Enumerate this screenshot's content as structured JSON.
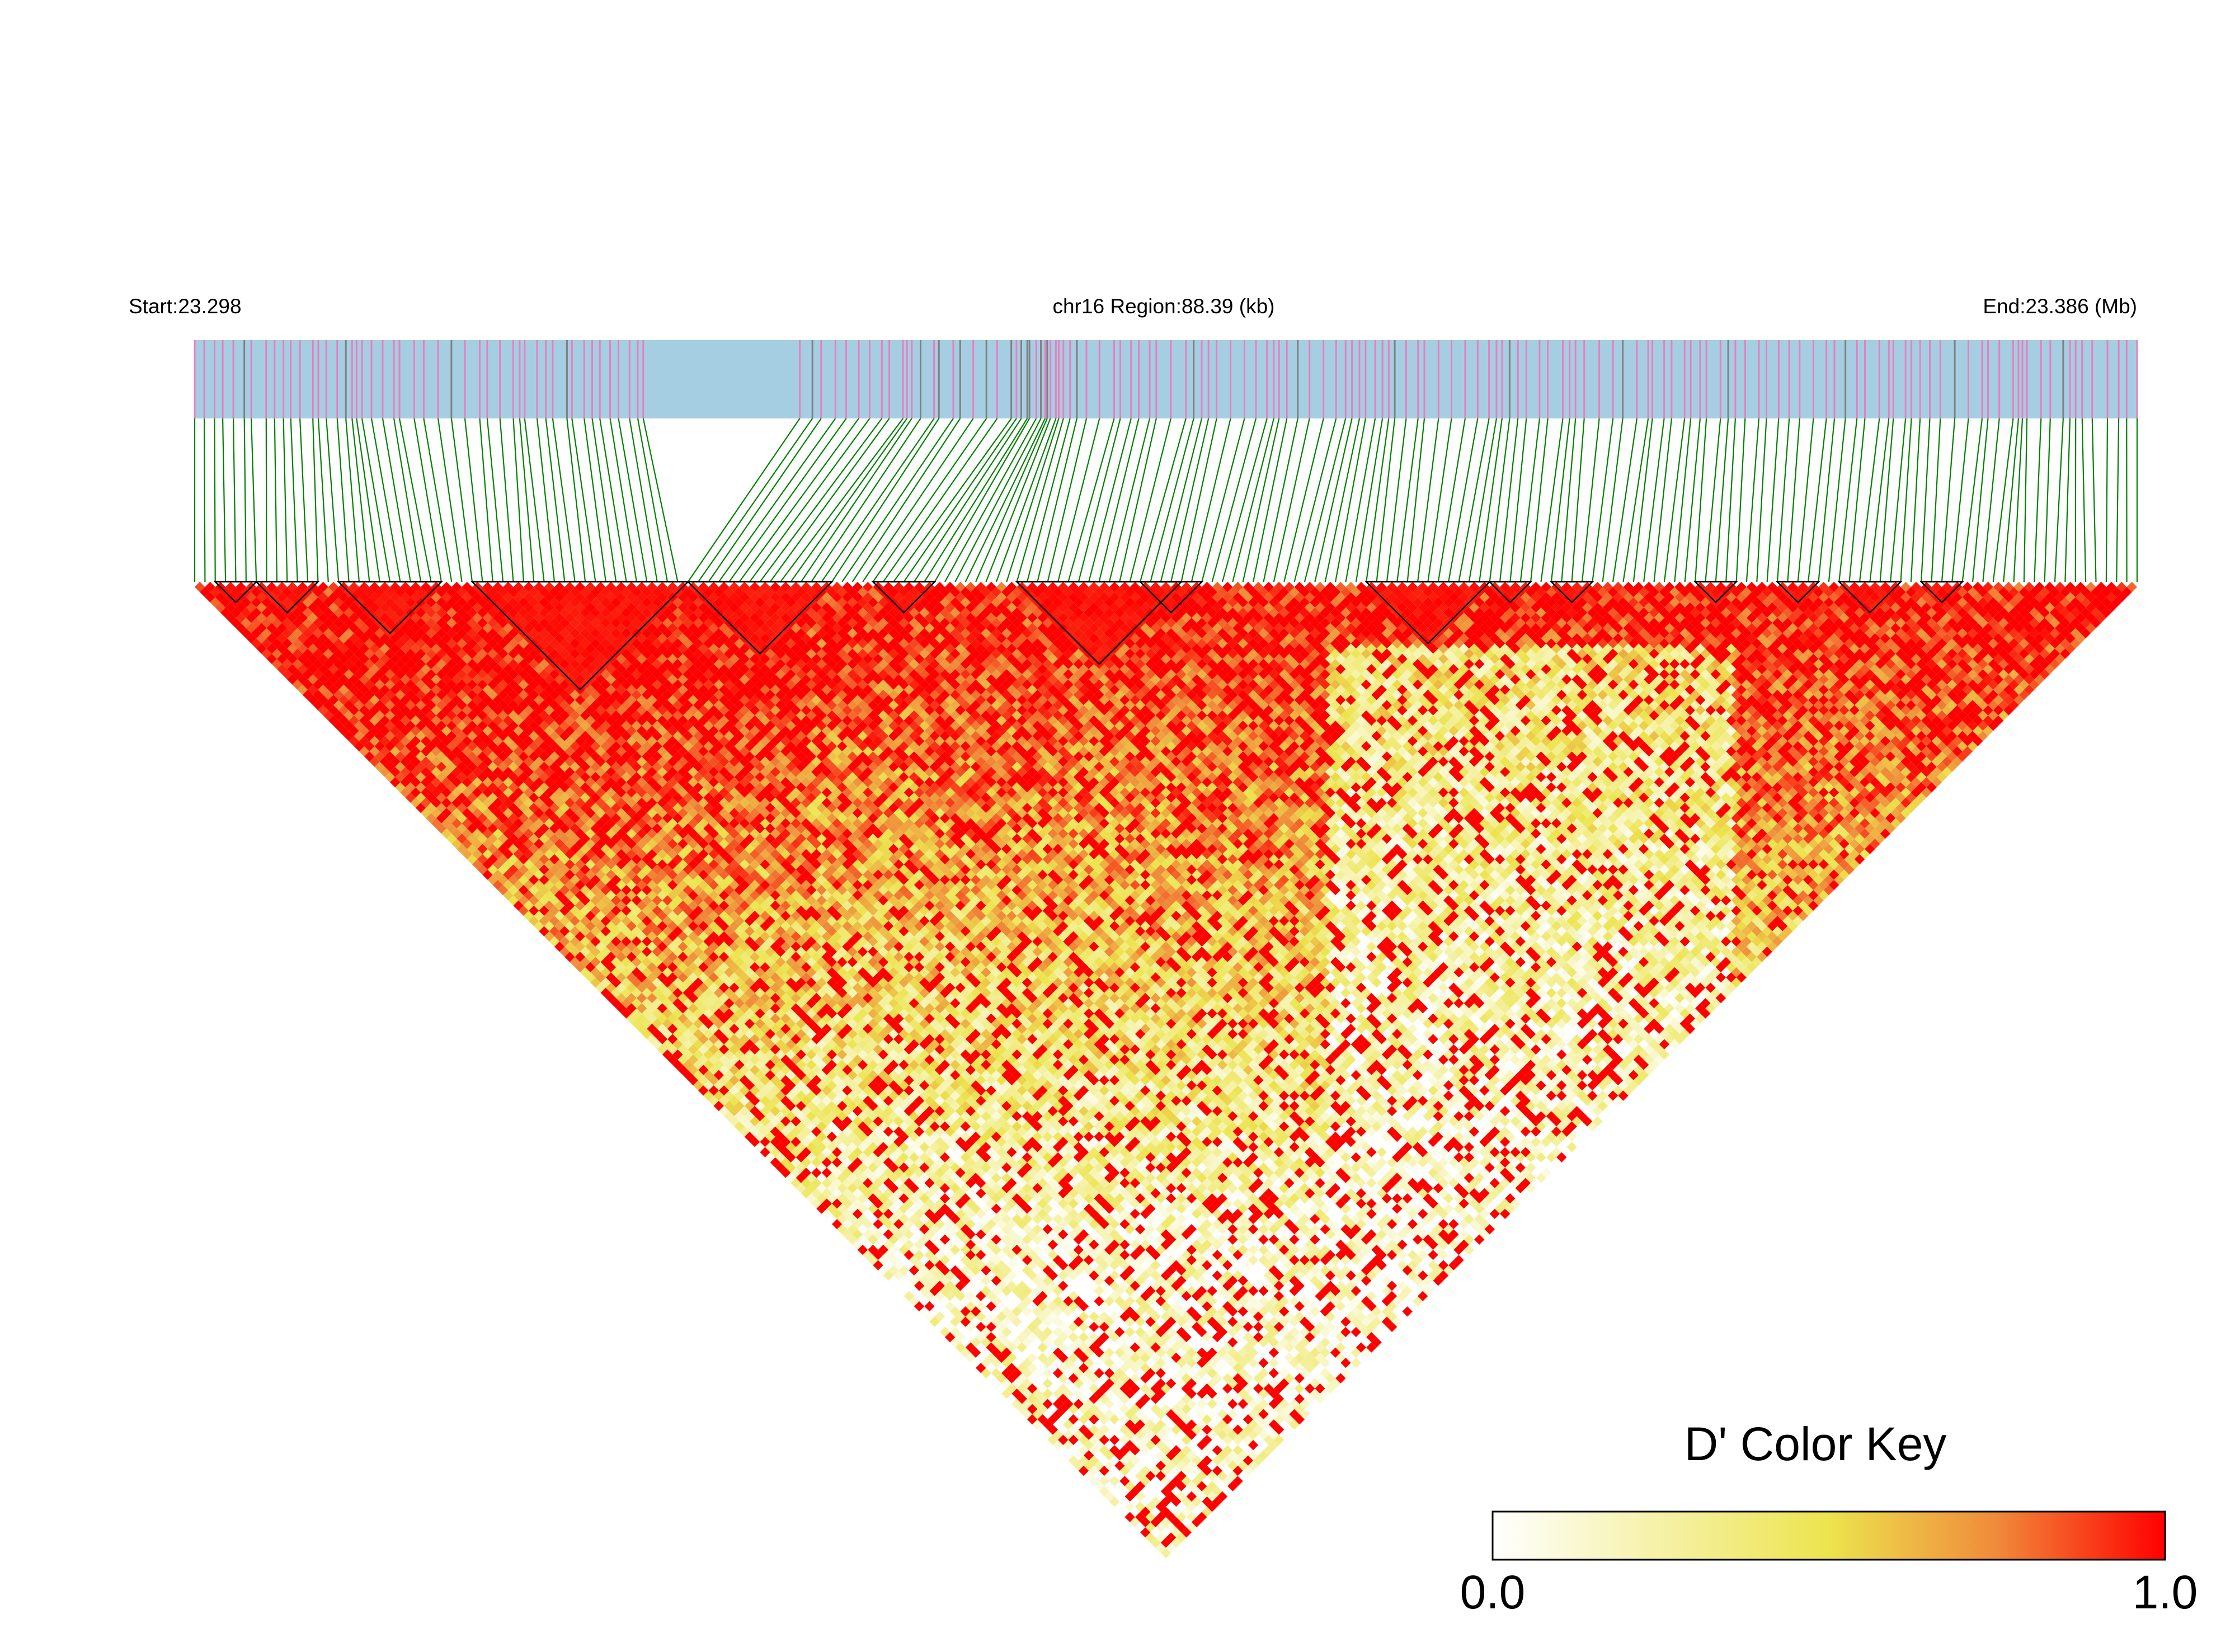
{
  "chart_data": {
    "type": "heatmap",
    "chromosome": "chr16",
    "header": {
      "start_label": "Start:23.298",
      "region_label": "chr16 Region:88.39 (kb)",
      "end_label": "End:23.386 (Mb)"
    },
    "region": {
      "start_mb": 23.298,
      "end_mb": 23.386,
      "length_kb": 88.39
    },
    "n_snps": 190,
    "measure": "D'",
    "color_key": {
      "title": "D' Color Key",
      "min_label": "0.0",
      "max_label": "1.0",
      "range": [
        0.0,
        1.0
      ],
      "stops": [
        {
          "value": 0.0,
          "color": "#ffffff"
        },
        {
          "value": 0.5,
          "color": "#ece44e"
        },
        {
          "value": 0.75,
          "color": "#f08a3a"
        },
        {
          "value": 1.0,
          "color": "#ff0000"
        }
      ]
    },
    "track_colors": {
      "band": "#a6cee3",
      "marker_pink": "#e87fbf",
      "marker_gray": "#808080",
      "connector": "#008000",
      "block_outline": "#000000"
    },
    "ld_blocks": [
      {
        "from": 2,
        "to": 6
      },
      {
        "from": 6,
        "to": 12
      },
      {
        "from": 14,
        "to": 24
      },
      {
        "from": 27,
        "to": 48
      },
      {
        "from": 48,
        "to": 62
      },
      {
        "from": 66,
        "to": 72
      },
      {
        "from": 80,
        "to": 96
      },
      {
        "from": 92,
        "to": 98
      },
      {
        "from": 114,
        "to": 126
      },
      {
        "from": 126,
        "to": 130
      },
      {
        "from": 132,
        "to": 136
      },
      {
        "from": 146,
        "to": 150
      },
      {
        "from": 154,
        "to": 158
      },
      {
        "from": 160,
        "to": 166
      },
      {
        "from": 168,
        "to": 172
      }
    ]
  }
}
